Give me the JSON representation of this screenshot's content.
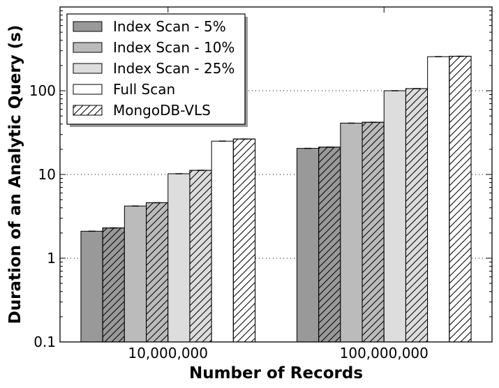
{
  "chart_data": {
    "type": "bar",
    "xlabel": "Number of Records",
    "ylabel": "Duration of an Analytic Query (s)",
    "yscale": "log",
    "ylim": [
      0.1,
      1000
    ],
    "yticks": [
      {
        "value": 0.1,
        "label": "0.1"
      },
      {
        "value": 1,
        "label": "1"
      },
      {
        "value": 10,
        "label": "10"
      },
      {
        "value": 100,
        "label": "100"
      }
    ],
    "grid": "horizontal dotted",
    "legend_position": "top-left",
    "categories": [
      "10,000,000",
      "100,000,000"
    ],
    "series": [
      {
        "name": "Index Scan - 5%",
        "values": [
          2.1,
          20.5
        ],
        "fill": "#999999",
        "hatch": false
      },
      {
        "name": "Index Scan - 5%",
        "values": [
          2.3,
          21.2
        ],
        "fill": "#999999",
        "hatch": true,
        "legend": false
      },
      {
        "name": "Index Scan - 10%",
        "values": [
          4.2,
          41
        ],
        "fill": "#bbbbbb",
        "hatch": false
      },
      {
        "name": "Index Scan - 10%",
        "values": [
          4.6,
          42
        ],
        "fill": "#bbbbbb",
        "hatch": true,
        "legend": false
      },
      {
        "name": "Index Scan - 25%",
        "values": [
          10.2,
          100
        ],
        "fill": "#dddddd",
        "hatch": false
      },
      {
        "name": "Index Scan - 25%",
        "values": [
          11.2,
          106
        ],
        "fill": "#dddddd",
        "hatch": true,
        "legend": false
      },
      {
        "name": "Full Scan",
        "values": [
          25,
          255
        ],
        "fill": "#ffffff",
        "hatch": false
      },
      {
        "name": "MongoDB-VLS",
        "values": [
          26.5,
          258
        ],
        "fill": "#ffffff",
        "hatch": true
      }
    ]
  }
}
